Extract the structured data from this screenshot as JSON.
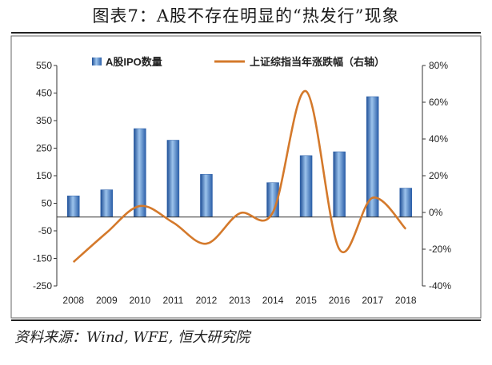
{
  "title": "图表7：A股不存在明显的“热发行”现象",
  "source": "资料来源：Wind, WFE, 恒大研究院",
  "chart_data": {
    "type": "bar+line",
    "categories": [
      "2008",
      "2009",
      "2010",
      "2011",
      "2012",
      "2013",
      "2014",
      "2015",
      "2016",
      "2017",
      "2018"
    ],
    "series": [
      {
        "name": "A股IPO数量",
        "type": "bar",
        "axis": "left",
        "color": "#3a6fb5",
        "values": [
          77,
          99,
          321,
          279,
          155,
          0,
          125,
          223,
          237,
          437,
          105
        ]
      },
      {
        "name": "上证综指当年涨跌幅（右轴）",
        "type": "line",
        "axis": "right",
        "color": "#d4792b",
        "values": [
          -27,
          -11,
          3.5,
          -5.5,
          -17,
          -0.5,
          0,
          66,
          -20,
          8,
          -9
        ]
      }
    ],
    "y_left": {
      "range": [
        -250,
        550
      ],
      "ticks": [
        "550",
        "450",
        "350",
        "250",
        "150",
        "50",
        "-50",
        "-150",
        "-250"
      ]
    },
    "y_right": {
      "range": [
        -40,
        80
      ],
      "ticks": [
        "80%",
        "60%",
        "40%",
        "20%",
        "0%",
        "-20%",
        "-40%"
      ]
    },
    "legend": {
      "placement": "top"
    },
    "grid": false
  }
}
